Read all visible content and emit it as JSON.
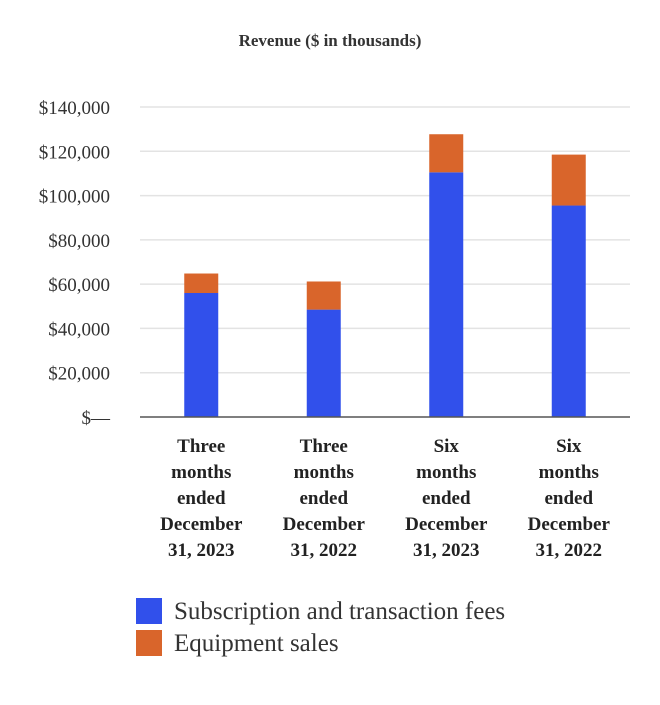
{
  "chart_data": {
    "type": "bar",
    "stacked": true,
    "title": "Revenue ($ in thousands)",
    "xlabel": "",
    "ylabel": "",
    "ylim": [
      0,
      140000
    ],
    "y_ticks": [
      0,
      20000,
      40000,
      60000,
      80000,
      100000,
      120000,
      140000
    ],
    "y_tick_labels": [
      "$—",
      "$20,000",
      "$40,000",
      "$60,000",
      "$80,000",
      "$100,000",
      "$120,000",
      "$140,000"
    ],
    "grid": true,
    "legend_position": "bottom",
    "categories": [
      [
        "Three",
        "months",
        "ended",
        "December",
        "31, 2023"
      ],
      [
        "Three",
        "months",
        "ended",
        "December",
        "31, 2022"
      ],
      [
        "Six",
        "months",
        "ended",
        "December",
        "31, 2023"
      ],
      [
        "Six",
        "months",
        "ended",
        "December",
        "31, 2022"
      ]
    ],
    "series": [
      {
        "name": "Subscription and transaction fees",
        "color": "#3150eb",
        "values": [
          56000,
          48500,
          110500,
          95500
        ]
      },
      {
        "name": "Equipment sales",
        "color": "#d9652b",
        "values": [
          8800,
          12700,
          17200,
          23000
        ]
      }
    ]
  }
}
